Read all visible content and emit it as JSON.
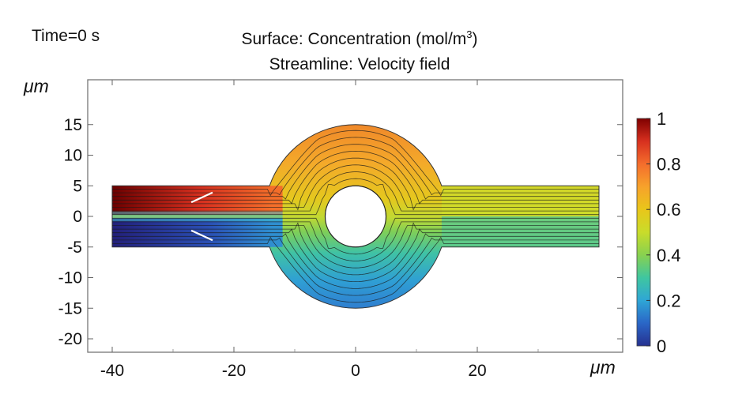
{
  "chart_data": {
    "type": "heatmap",
    "time_label": "Time=0 s",
    "title": "Surface: Concentration (mol/m",
    "title_superscript": "3",
    "title_close": ")",
    "subtitle": "Streamline: Velocity field",
    "xlabel": "μm",
    "ylabel": "μm",
    "xlim": [
      -45,
      45
    ],
    "ylim": [
      -22.5,
      21
    ],
    "x_ticks": [
      -40,
      -20,
      0,
      20
    ],
    "x_tick_labels": [
      "-40",
      "-20",
      "0",
      "20"
    ],
    "y_ticks": [
      15,
      10,
      5,
      0,
      -5,
      -10,
      -15,
      -20
    ],
    "y_tick_labels": [
      "15",
      "10",
      "5",
      "0",
      "-5",
      "-10",
      "-15",
      "-20"
    ],
    "geometry": {
      "channel_x": [
        -40,
        40
      ],
      "channel_half_width": 5,
      "chamber_center": [
        0,
        0
      ],
      "chamber_outer_radius": 15,
      "obstacle_radius": 5
    },
    "colorbar": {
      "range": [
        0,
        1
      ],
      "ticks": [
        1,
        0.8,
        0.6,
        0.4,
        0.2,
        0
      ],
      "tick_labels": [
        "1",
        "0.8",
        "0.6",
        "0.4",
        "0.2",
        "0"
      ],
      "colormap": [
        "#7f0000",
        "#d7301f",
        "#f46d2c",
        "#f7a22b",
        "#e9c61a",
        "#c9dc2a",
        "#88d150",
        "#3fc6a0",
        "#2fa6d6",
        "#2a66c7",
        "#26318f"
      ]
    },
    "streamline_count": 16,
    "grid": false,
    "legend": "right"
  }
}
